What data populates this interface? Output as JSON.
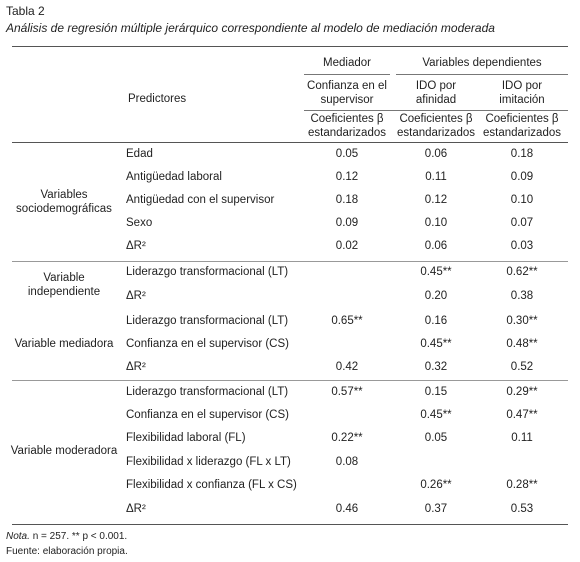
{
  "caption": {
    "label": "Tabla 2",
    "title": "Análisis de regresión múltiple jerárquico correspondiente al modelo de mediación moderada"
  },
  "header": {
    "predictors": "Predictores",
    "mediator_group": "Mediador",
    "dependent_group": "Variables dependientes",
    "col1_line1": "Confianza en el",
    "col1_line2": "supervisor",
    "col2_line1": "IDO por",
    "col2_line2": "afinidad",
    "col3_line1": "IDO por",
    "col3_line2": "imitación",
    "coef_line1": "Coeficientes β",
    "coef_line2": "estandarizados"
  },
  "groups": [
    {
      "line1": "Variables",
      "line2": "sociodemográficas"
    },
    {
      "line1": "Variable",
      "line2": "independiente"
    },
    {
      "line1": "Variable mediadora",
      "line2": ""
    },
    {
      "line1": "Variable moderadora",
      "line2": ""
    }
  ],
  "rows": [
    {
      "predictor": "Edad",
      "c1": "0.05",
      "c2": "0.06",
      "c3": "0.18"
    },
    {
      "predictor": "Antigüedad laboral",
      "c1": "0.12",
      "c2": "0.11",
      "c3": "0.09"
    },
    {
      "predictor": "Antigüedad con el supervisor",
      "c1": "0.18",
      "c2": "0.12",
      "c3": "0.10"
    },
    {
      "predictor": "Sexo",
      "c1": "0.09",
      "c2": "0.10",
      "c3": "0.07"
    },
    {
      "predictor": "ΔR²",
      "c1": "0.02",
      "c2": "0.06",
      "c3": "0.03"
    },
    {
      "predictor": "Liderazgo transformacional (LT)",
      "c1": "",
      "c2": "0.45**",
      "c3": "0.62**"
    },
    {
      "predictor": "ΔR²",
      "c1": "",
      "c2": "0.20",
      "c3": "0.38"
    },
    {
      "predictor": "Liderazgo transformacional (LT)",
      "c1": "0.65**",
      "c2": "0.16",
      "c3": "0.30**"
    },
    {
      "predictor": "Confianza en el supervisor (CS)",
      "c1": "",
      "c2": "0.45**",
      "c3": "0.48**"
    },
    {
      "predictor": "ΔR²",
      "c1": "0.42",
      "c2": "0.32",
      "c3": "0.52"
    },
    {
      "predictor": "Liderazgo transformacional (LT)",
      "c1": "0.57**",
      "c2": "0.15",
      "c3": "0.29**"
    },
    {
      "predictor": "Confianza en el supervisor (CS)",
      "c1": "",
      "c2": "0.45**",
      "c3": "0.47**"
    },
    {
      "predictor": "Flexibilidad laboral (FL)",
      "c1": "0.22**",
      "c2": "0.05",
      "c3": "0.11"
    },
    {
      "predictor": "Flexibilidad x liderazgo (FL x LT)",
      "c1": "0.08",
      "c2": "",
      "c3": ""
    },
    {
      "predictor": "Flexibilidad x confianza (FL x CS)",
      "c1": "",
      "c2": "0.26**",
      "c3": "0.28**"
    },
    {
      "predictor": "ΔR²",
      "c1": "0.46",
      "c2": "0.37",
      "c3": "0.53"
    }
  ],
  "notes": {
    "note_label": "Nota.",
    "note_text": "n = 257. ** p < 0.001.",
    "source": "Fuente: elaboración propia."
  }
}
